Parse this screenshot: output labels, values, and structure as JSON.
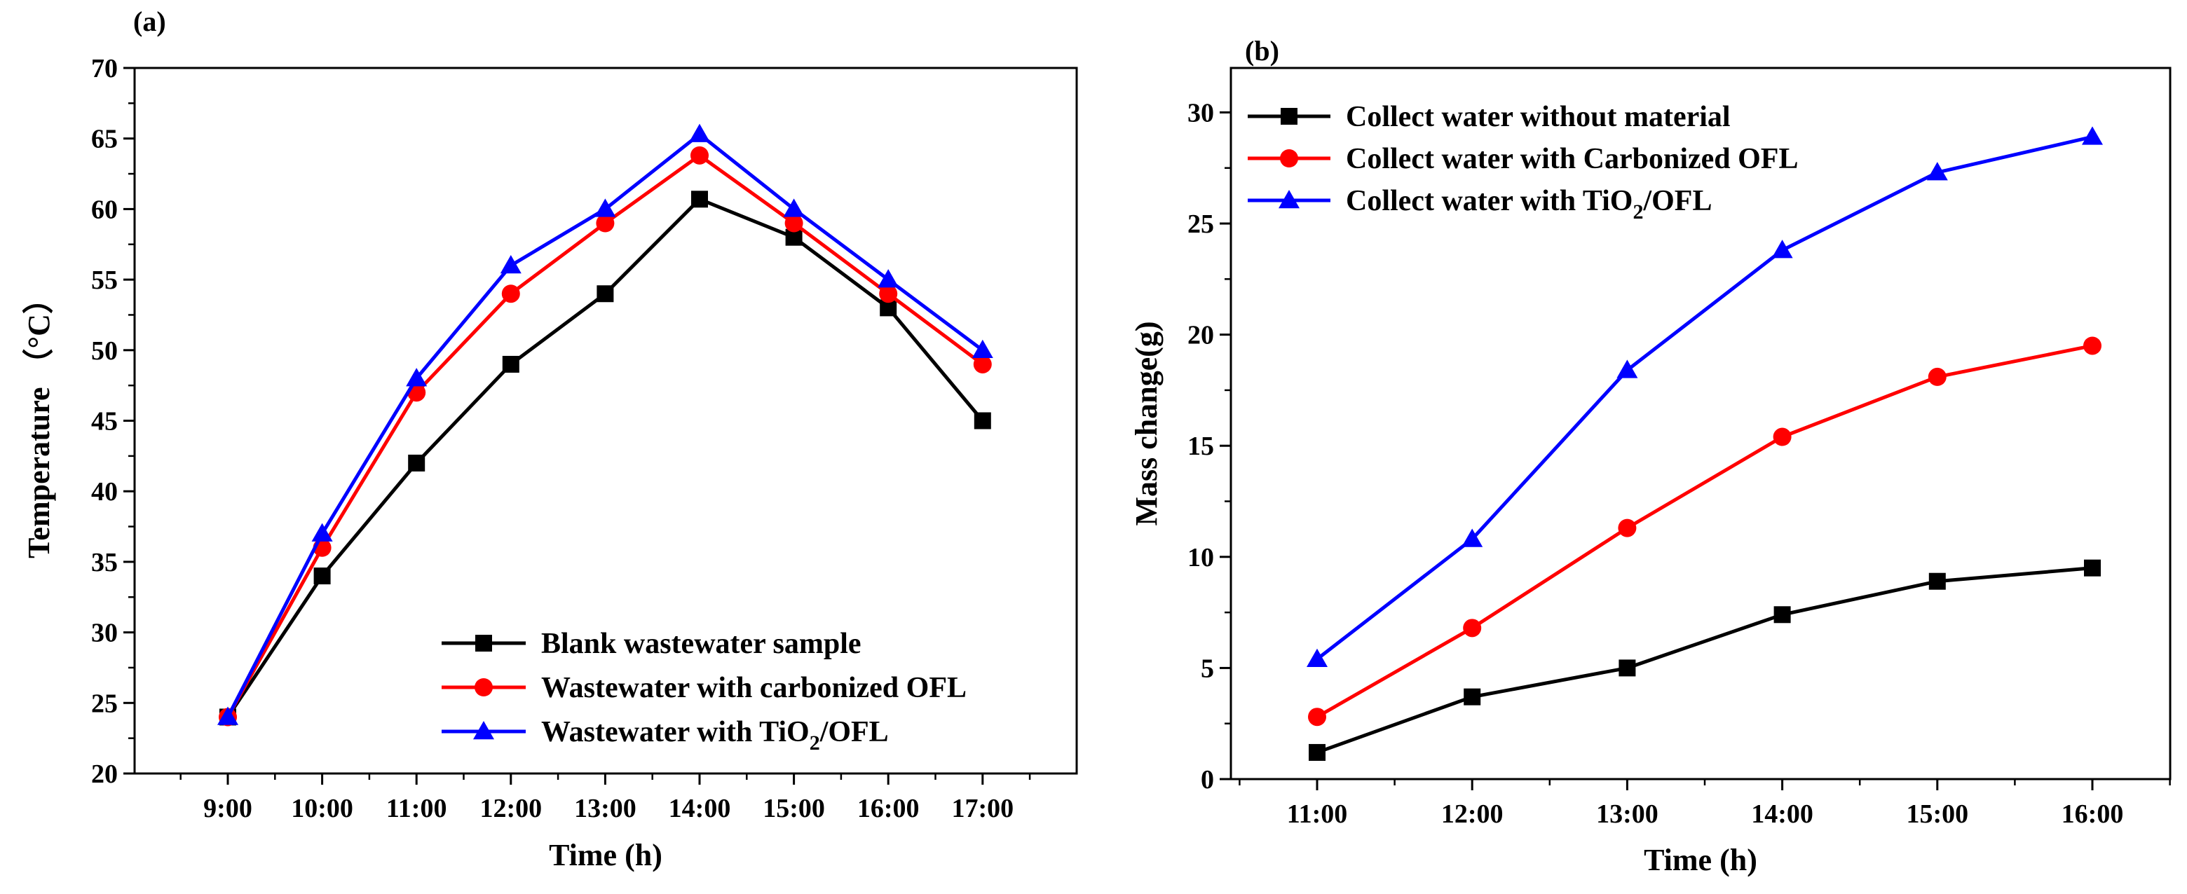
{
  "chart_data": [
    {
      "panel": "(a)",
      "type": "line",
      "xlabel": "Time (h)",
      "ylabel": "Temperature （°C）",
      "categories": [
        "9:00",
        "10:00",
        "11:00",
        "12:00",
        "13:00",
        "14:00",
        "15:00",
        "16:00",
        "17:00"
      ],
      "ylim": [
        20,
        70
      ],
      "yticks": [
        20,
        25,
        30,
        35,
        40,
        45,
        50,
        55,
        60,
        65,
        70
      ],
      "legend_position": "bottom-right",
      "series": [
        {
          "name": "Blank wastewater sample",
          "legend_main": "Blank wastewater sample",
          "legend_sub": "",
          "legend_tail": "",
          "color": "#000000",
          "marker": "square",
          "values": [
            24,
            34,
            42,
            49,
            54,
            60.7,
            58,
            53,
            45
          ]
        },
        {
          "name": "Wastewater with carbonized OFL",
          "legend_main": "Wastewater with carbonized OFL",
          "legend_sub": "",
          "legend_tail": "",
          "color": "#ff0000",
          "marker": "circle",
          "values": [
            24,
            36,
            47,
            54,
            59,
            63.8,
            59,
            54,
            49
          ]
        },
        {
          "name": "Wastewater with  TiO2/OFL",
          "legend_main": "Wastewater with  TiO",
          "legend_sub": "2",
          "legend_tail": "/OFL",
          "color": "#0000ff",
          "marker": "triangle",
          "values": [
            24,
            37,
            48,
            56,
            60,
            65.3,
            60,
            55,
            50
          ]
        }
      ]
    },
    {
      "panel": "(b)",
      "type": "line",
      "xlabel": "Time (h)",
      "ylabel": "Mass change(g)",
      "categories": [
        "11:00",
        "12:00",
        "13:00",
        "14:00",
        "15:00",
        "16:00"
      ],
      "ylim": [
        0,
        32
      ],
      "yticks": [
        0,
        5,
        10,
        15,
        20,
        25,
        30
      ],
      "legend_position": "top-left",
      "series": [
        {
          "name": "Collect water without material",
          "legend_main": "Collect water without material",
          "legend_sub": "",
          "legend_tail": "",
          "color": "#000000",
          "marker": "square",
          "values": [
            1.2,
            3.7,
            5.0,
            7.4,
            8.9,
            9.5
          ]
        },
        {
          "name": "Collect water with Carbonized OFL",
          "legend_main": "Collect water with Carbonized OFL",
          "legend_sub": "",
          "legend_tail": "",
          "color": "#ff0000",
          "marker": "circle",
          "values": [
            2.8,
            6.8,
            11.3,
            15.4,
            18.1,
            19.5
          ]
        },
        {
          "name": "Collect water with TiO2/OFL",
          "legend_main": "Collect water with TiO",
          "legend_sub": "2",
          "legend_tail": "/OFL",
          "color": "#0000ff",
          "marker": "triangle",
          "values": [
            5.4,
            10.8,
            18.4,
            23.8,
            27.3,
            28.9
          ]
        }
      ]
    }
  ]
}
